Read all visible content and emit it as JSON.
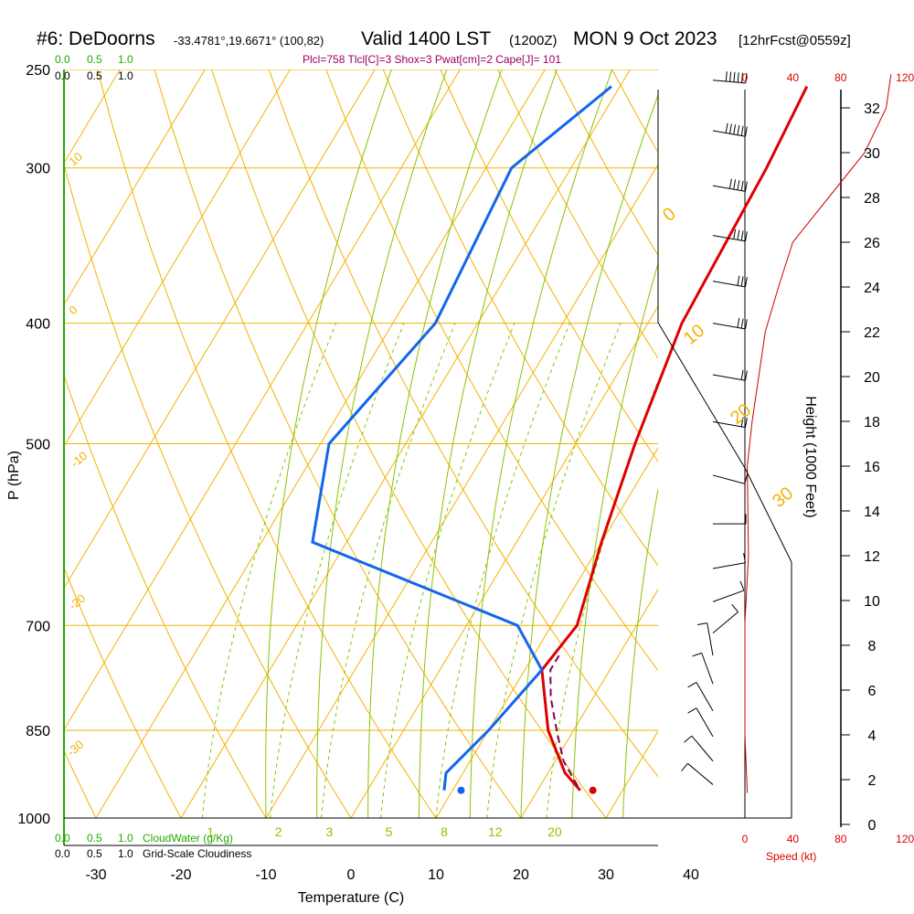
{
  "header": {
    "station": "#6: DeDoorns",
    "coords": "-33.4781°,19.6671° (100,82)",
    "valid": "Valid 1400 LST",
    "zulu": "(1200Z)",
    "date": "MON 9 Oct 2023",
    "forecast": "[12hrFcst@0559z]"
  },
  "indices_line": "Plcl=758 Tlcl[C]=3 Shox=3 Pwat[cm]=2 Cape[J]= 101",
  "bottom_labels": {
    "cloudwater": "CloudWater (g/Kg)",
    "cloudiness": "Grid-Scale Cloudiness",
    "scale_top": [
      "0.0",
      "0.5",
      "1.0"
    ],
    "scale_bottom": [
      "0.0",
      "0.5",
      "1.0"
    ],
    "cloud_scale_top_left": [
      "0.0",
      "0.5",
      "1.0"
    ],
    "cloud_scale_top_left_black": [
      "0.0",
      "0.5",
      "1.0"
    ]
  },
  "colors": {
    "temperature": "#dd0000",
    "dewpoint": "#1166ee",
    "parcel": "#880055",
    "isotherm": "#f2b200",
    "dry_adiabat": "#f2b200",
    "moist_adiabat": "#88c400",
    "mixing_ratio": "#88c400",
    "wind_profile": "#cc0000",
    "cloudwater": "#22aa00"
  },
  "chart_data": {
    "type": "skew-t log-p",
    "xlabel": "Temperature (C)",
    "ylabel": "P (hPa)",
    "y2label": "Height (1000 Feet)",
    "x_ticks": [
      -30,
      -20,
      -10,
      0,
      10,
      20,
      30,
      40
    ],
    "p_ticks": [
      250,
      300,
      400,
      500,
      700,
      850,
      1000
    ],
    "height_ticks": [
      0,
      2,
      4,
      6,
      8,
      10,
      12,
      14,
      16,
      18,
      20,
      22,
      24,
      26,
      28,
      30,
      32
    ],
    "speed_ticks": [
      0,
      40,
      80,
      120
    ],
    "speed_label": "Speed (kt)",
    "isotherm_labels": [
      "10",
      "0",
      "-10",
      "-20",
      "-30",
      "0",
      "10",
      "20",
      "30"
    ],
    "mixing_ratio_labels": [
      "1",
      "2",
      "3",
      "5",
      "8",
      "12",
      "20"
    ],
    "temperature_profile": [
      {
        "p": 258,
        "t": 2
      },
      {
        "p": 300,
        "t": 3
      },
      {
        "p": 400,
        "t": 4
      },
      {
        "p": 500,
        "t": 7
      },
      {
        "p": 600,
        "t": 10
      },
      {
        "p": 700,
        "t": 13
      },
      {
        "p": 760,
        "t": 12
      },
      {
        "p": 850,
        "t": 17
      },
      {
        "p": 920,
        "t": 22
      },
      {
        "p": 950,
        "t": 25
      }
    ],
    "dewpoint_profile": [
      {
        "p": 258,
        "t": -21
      },
      {
        "p": 300,
        "t": -27
      },
      {
        "p": 400,
        "t": -25
      },
      {
        "p": 500,
        "t": -29
      },
      {
        "p": 600,
        "t": -24
      },
      {
        "p": 700,
        "t": 6
      },
      {
        "p": 760,
        "t": 12
      },
      {
        "p": 850,
        "t": 10
      },
      {
        "p": 920,
        "t": 8
      },
      {
        "p": 950,
        "t": 9
      }
    ],
    "parcel_profile": [
      {
        "p": 740,
        "t": 13
      },
      {
        "p": 760,
        "t": 13
      },
      {
        "p": 800,
        "t": 15
      },
      {
        "p": 850,
        "t": 18
      },
      {
        "p": 900,
        "t": 21
      },
      {
        "p": 950,
        "t": 25
      }
    ],
    "surface_temperature": 26.5,
    "surface_dewpoint": 11,
    "wind_speed_profile": [
      {
        "height_kft": 1.4,
        "speed_kt": 2
      },
      {
        "height_kft": 4,
        "speed_kt": 0
      },
      {
        "height_kft": 8,
        "speed_kt": 0
      },
      {
        "height_kft": 9,
        "speed_kt": 0
      },
      {
        "height_kft": 12,
        "speed_kt": 3
      },
      {
        "height_kft": 16,
        "speed_kt": 2
      },
      {
        "height_kft": 18,
        "speed_kt": 6
      },
      {
        "height_kft": 22,
        "speed_kt": 17
      },
      {
        "height_kft": 24,
        "speed_kt": 28
      },
      {
        "height_kft": 26,
        "speed_kt": 40
      },
      {
        "height_kft": 28,
        "speed_kt": 70
      },
      {
        "height_kft": 30,
        "speed_kt": 100
      },
      {
        "height_kft": 32,
        "speed_kt": 118
      },
      {
        "height_kft": 33.5,
        "speed_kt": 122
      }
    ],
    "wind_barbs": [
      {
        "p": 255,
        "dir": 275,
        "kt": 60
      },
      {
        "p": 280,
        "dir": 280,
        "kt": 55
      },
      {
        "p": 310,
        "dir": 280,
        "kt": 45
      },
      {
        "p": 340,
        "dir": 280,
        "kt": 40
      },
      {
        "p": 370,
        "dir": 280,
        "kt": 30
      },
      {
        "p": 400,
        "dir": 280,
        "kt": 25
      },
      {
        "p": 440,
        "dir": 280,
        "kt": 20
      },
      {
        "p": 480,
        "dir": 280,
        "kt": 15
      },
      {
        "p": 530,
        "dir": 285,
        "kt": 10
      },
      {
        "p": 580,
        "dir": 270,
        "kt": 10
      },
      {
        "p": 630,
        "dir": 260,
        "kt": 10
      },
      {
        "p": 670,
        "dir": 250,
        "kt": 10
      },
      {
        "p": 710,
        "dir": 230,
        "kt": 10
      },
      {
        "p": 740,
        "dir": 170,
        "kt": 10
      },
      {
        "p": 780,
        "dir": 160,
        "kt": 10
      },
      {
        "p": 820,
        "dir": 150,
        "kt": 10
      },
      {
        "p": 860,
        "dir": 150,
        "kt": 10
      },
      {
        "p": 900,
        "dir": 140,
        "kt": 10
      },
      {
        "p": 940,
        "dir": 130,
        "kt": 10
      }
    ]
  }
}
